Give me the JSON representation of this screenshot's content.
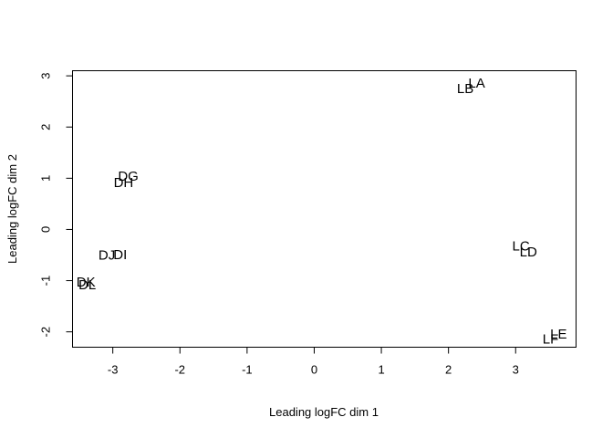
{
  "chart_data": {
    "type": "scatter",
    "marker": "text-labels",
    "xlabel": "Leading logFC dim 1",
    "ylabel": "Leading logFC dim 2",
    "xlim": [
      -3.6,
      3.9
    ],
    "ylim": [
      -2.3,
      3.1
    ],
    "xticks": [
      -3,
      -2,
      -1,
      0,
      1,
      2,
      3
    ],
    "yticks": [
      -2,
      -1,
      0,
      1,
      2,
      3
    ],
    "grid": false,
    "points": [
      {
        "label": "LA",
        "x": 2.42,
        "y": 2.86
      },
      {
        "label": "LB",
        "x": 2.25,
        "y": 2.75
      },
      {
        "label": "DG",
        "x": -2.77,
        "y": 1.04
      },
      {
        "label": "DH",
        "x": -2.84,
        "y": 0.92
      },
      {
        "label": "LC",
        "x": 3.08,
        "y": -0.32
      },
      {
        "label": "LD",
        "x": 3.19,
        "y": -0.44
      },
      {
        "label": "DJ",
        "x": -3.09,
        "y": -0.5
      },
      {
        "label": "DI",
        "x": -2.89,
        "y": -0.49
      },
      {
        "label": "DK",
        "x": -3.4,
        "y": -1.03
      },
      {
        "label": "DL",
        "x": -3.38,
        "y": -1.08
      },
      {
        "label": "LE",
        "x": 3.64,
        "y": -2.04
      },
      {
        "label": "LF",
        "x": 3.52,
        "y": -2.14
      }
    ]
  }
}
